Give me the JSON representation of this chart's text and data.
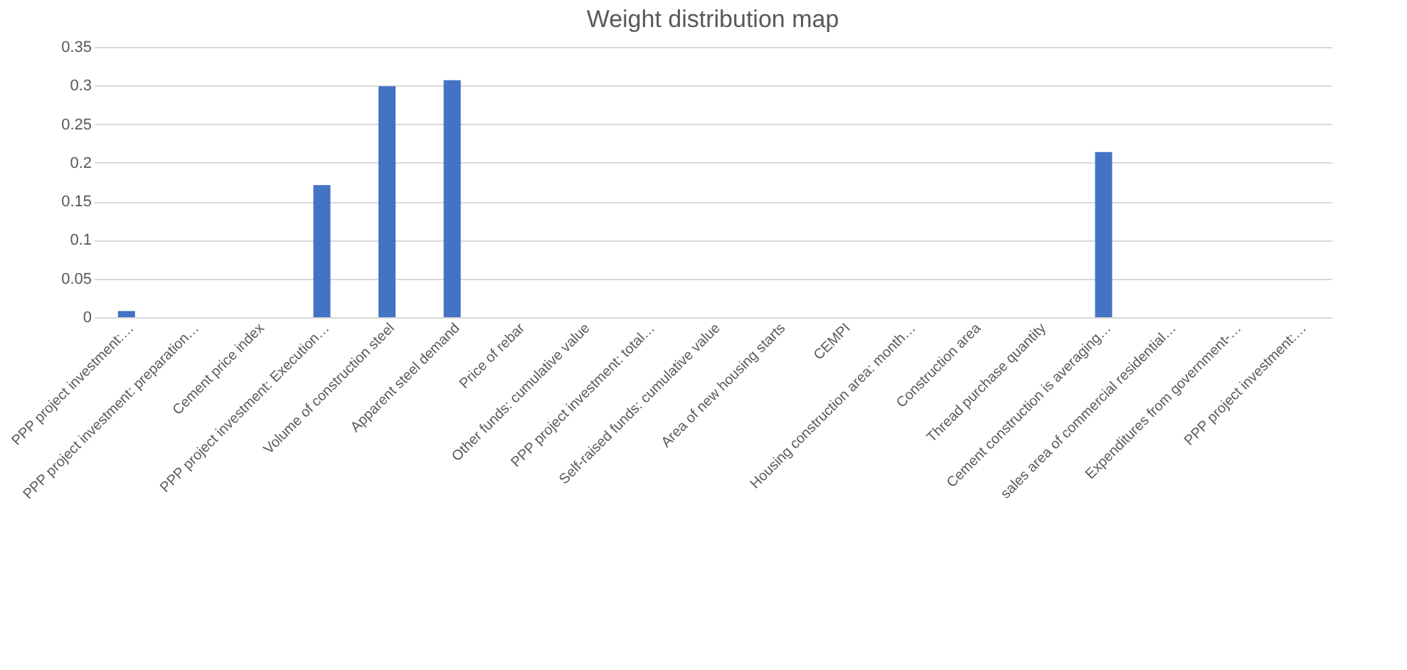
{
  "chart_data": {
    "type": "bar",
    "title": "Weight distribution map",
    "categories": [
      "PPP project investment:…",
      "PPP project investment: preparation…",
      "Cement price index",
      "PPP project investment: Execution…",
      "Volume of construction steel",
      "Apparent steel demand",
      "Price of rebar",
      "Other funds: cumulative value",
      "PPP project investment: total…",
      "Self-raised funds: cumulative value",
      "Area of new housing starts",
      "CEMPI",
      "Housing construction area: month…",
      "Construction area",
      "Thread purchase quantity",
      "Cement construction is averaging…",
      "sales area of commercial residential…",
      "Expenditures from government-…",
      "PPP project investment:…"
    ],
    "values": [
      0.008,
      0,
      0,
      0.171,
      0.299,
      0.307,
      0,
      0,
      0,
      0,
      0,
      0,
      0,
      0,
      0,
      0.214,
      0,
      0,
      0
    ],
    "color": "#4472c4",
    "ylim": [
      0,
      0.35
    ],
    "yticks": [
      0,
      0.05,
      0.1,
      0.15,
      0.2,
      0.25,
      0.3,
      0.35
    ],
    "grid": "y"
  }
}
